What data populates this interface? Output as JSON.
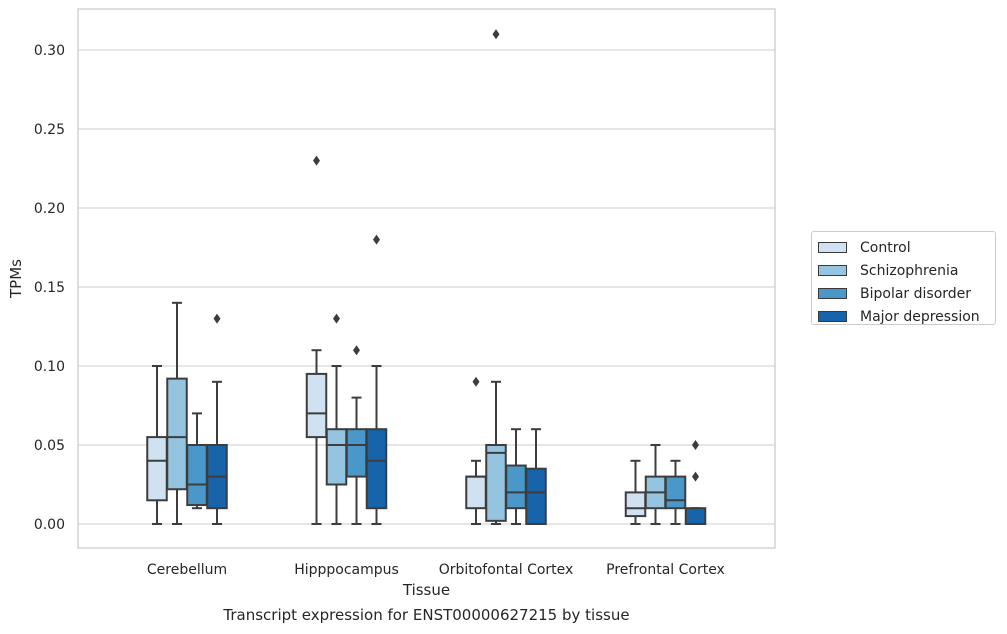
{
  "chart_data": {
    "type": "boxplot",
    "caption": "Transcript expression for ENST00000627215 by tissue",
    "xlabel": "Tissue",
    "ylabel": "TPMs",
    "ylim": [
      -0.015,
      0.325
    ],
    "yticks": [
      "0.00",
      "0.05",
      "0.10",
      "0.15",
      "0.20",
      "0.25",
      "0.30"
    ],
    "ytick_values": [
      0,
      0.05,
      0.1,
      0.15,
      0.2,
      0.25,
      0.3
    ],
    "grid": true,
    "legend_position": "right",
    "categories": [
      "Cerebellum",
      "Hipppocampus",
      "Orbitofontal Cortex",
      "Prefrontal Cortex"
    ],
    "series": [
      {
        "name": "Control",
        "color": "#d0e1f2",
        "boxes": [
          {
            "min": 0,
            "q1": 0.015,
            "median": 0.04,
            "q3": 0.055,
            "max": 0.1,
            "outliers": []
          },
          {
            "min": 0,
            "q1": 0.055,
            "median": 0.07,
            "q3": 0.095,
            "max": 0.11,
            "outliers": [
              0.23
            ]
          },
          {
            "min": 0,
            "q1": 0.01,
            "median": 0.03,
            "q3": 0.03,
            "max": 0.04,
            "outliers": [
              0.09
            ]
          },
          {
            "min": 0,
            "q1": 0.005,
            "median": 0.01,
            "q3": 0.02,
            "max": 0.04,
            "outliers": []
          }
        ]
      },
      {
        "name": "Schizophrenia",
        "color": "#94c4df",
        "boxes": [
          {
            "min": 0,
            "q1": 0.022,
            "median": 0.055,
            "q3": 0.092,
            "max": 0.14,
            "outliers": []
          },
          {
            "min": 0,
            "q1": 0.025,
            "median": 0.05,
            "q3": 0.06,
            "max": 0.1,
            "outliers": [
              0.13
            ]
          },
          {
            "min": 0,
            "q1": 0.002,
            "median": 0.045,
            "q3": 0.05,
            "max": 0.09,
            "outliers": [
              0.31
            ]
          },
          {
            "min": 0,
            "q1": 0.01,
            "median": 0.02,
            "q3": 0.03,
            "max": 0.05,
            "outliers": []
          }
        ]
      },
      {
        "name": "Bipolar disorder",
        "color": "#4a98c9",
        "boxes": [
          {
            "min": 0.01,
            "q1": 0.012,
            "median": 0.025,
            "q3": 0.05,
            "max": 0.07,
            "outliers": []
          },
          {
            "min": 0,
            "q1": 0.03,
            "median": 0.05,
            "q3": 0.06,
            "max": 0.08,
            "outliers": [
              0.11
            ]
          },
          {
            "min": 0,
            "q1": 0.01,
            "median": 0.02,
            "q3": 0.037,
            "max": 0.06,
            "outliers": []
          },
          {
            "min": 0,
            "q1": 0.01,
            "median": 0.015,
            "q3": 0.03,
            "max": 0.04,
            "outliers": []
          }
        ]
      },
      {
        "name": "Major depression",
        "color": "#1764ab",
        "boxes": [
          {
            "min": 0,
            "q1": 0.01,
            "median": 0.03,
            "q3": 0.05,
            "max": 0.09,
            "outliers": [
              0.13
            ]
          },
          {
            "min": 0,
            "q1": 0.01,
            "median": 0.04,
            "q3": 0.06,
            "max": 0.1,
            "outliers": [
              0.18
            ]
          },
          {
            "min": 0,
            "q1": 0,
            "median": 0.02,
            "q3": 0.035,
            "max": 0.06,
            "outliers": []
          },
          {
            "min": 0,
            "q1": 0,
            "median": 0,
            "q3": 0.01,
            "max": 0.01,
            "outliers": [
              0.03,
              0.05
            ]
          }
        ]
      }
    ]
  }
}
